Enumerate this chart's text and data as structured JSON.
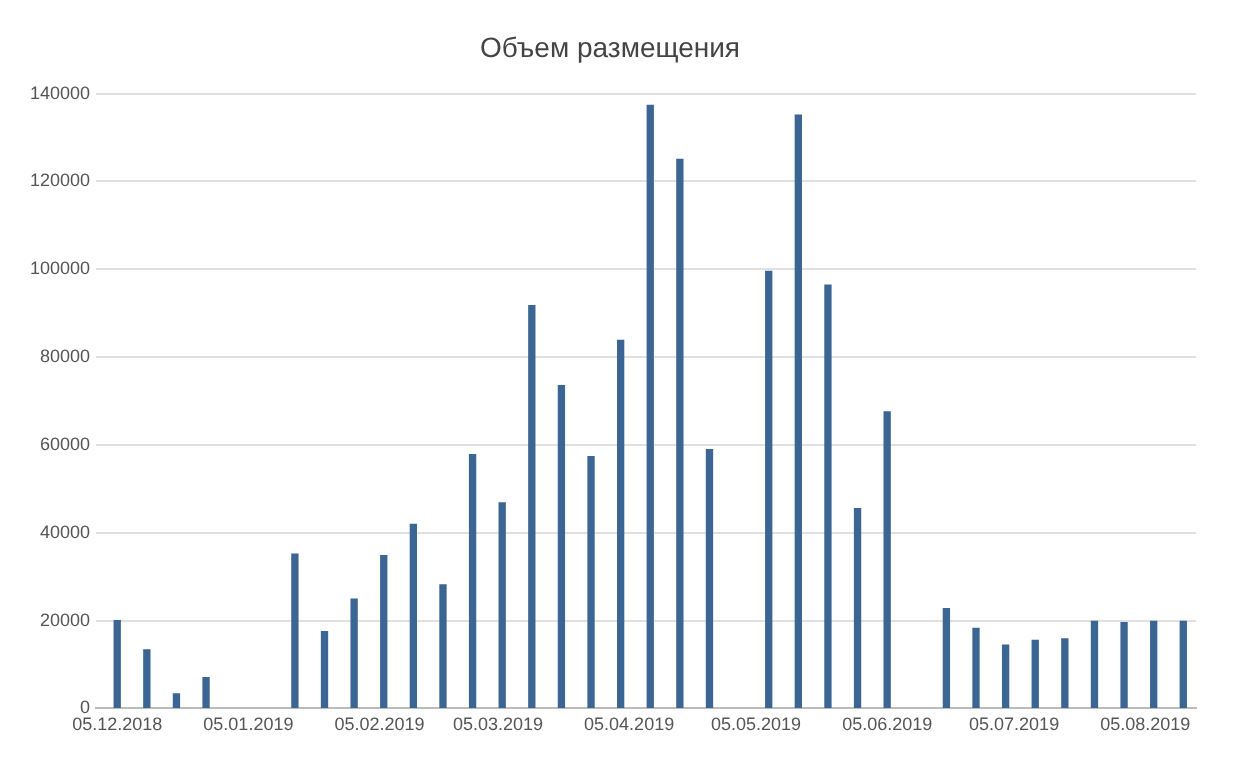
{
  "chart_data": {
    "type": "bar",
    "title": "Объем размещения",
    "x": [
      "2018-12-05",
      "2018-12-12",
      "2018-12-19",
      "2018-12-26",
      "2019-01-16",
      "2019-01-23",
      "2019-01-30",
      "2019-02-06",
      "2019-02-13",
      "2019-02-20",
      "2019-02-27",
      "2019-03-06",
      "2019-03-13",
      "2019-03-20",
      "2019-03-27",
      "2019-04-03",
      "2019-04-10",
      "2019-04-17",
      "2019-04-24",
      "2019-05-08",
      "2019-05-15",
      "2019-05-22",
      "2019-05-29",
      "2019-06-05",
      "2019-06-19",
      "2019-06-26",
      "2019-07-03",
      "2019-07-10",
      "2019-07-17",
      "2019-07-24",
      "2019-07-31",
      "2019-08-07",
      "2019-08-14"
    ],
    "values": [
      20000,
      13300,
      3300,
      7000,
      35100,
      17500,
      24900,
      34800,
      41900,
      28100,
      57800,
      46800,
      91700,
      73500,
      57300,
      83800,
      137300,
      125000,
      58900,
      99500,
      135100,
      96400,
      45500,
      67500,
      22700,
      18200,
      14400,
      15500,
      15800,
      19800,
      19500,
      19800,
      19800
    ],
    "color": "#3b6592",
    "xlim": [
      "2018-11-30",
      "2019-08-17"
    ],
    "xticks": [
      {
        "value": "2018-12-05",
        "label": "05.12.2018"
      },
      {
        "value": "2019-01-05",
        "label": "05.01.2019"
      },
      {
        "value": "2019-02-05",
        "label": "05.02.2019"
      },
      {
        "value": "2019-03-05",
        "label": "05.03.2019"
      },
      {
        "value": "2019-04-05",
        "label": "05.04.2019"
      },
      {
        "value": "2019-05-05",
        "label": "05.05.2019"
      },
      {
        "value": "2019-06-05",
        "label": "05.06.2019"
      },
      {
        "value": "2019-07-05",
        "label": "05.07.2019"
      },
      {
        "value": "2019-08-05",
        "label": "05.08.2019"
      }
    ],
    "ylim": [
      0,
      140000
    ],
    "yticks": [
      0,
      20000,
      40000,
      60000,
      80000,
      100000,
      120000,
      140000
    ],
    "grid": "y"
  }
}
